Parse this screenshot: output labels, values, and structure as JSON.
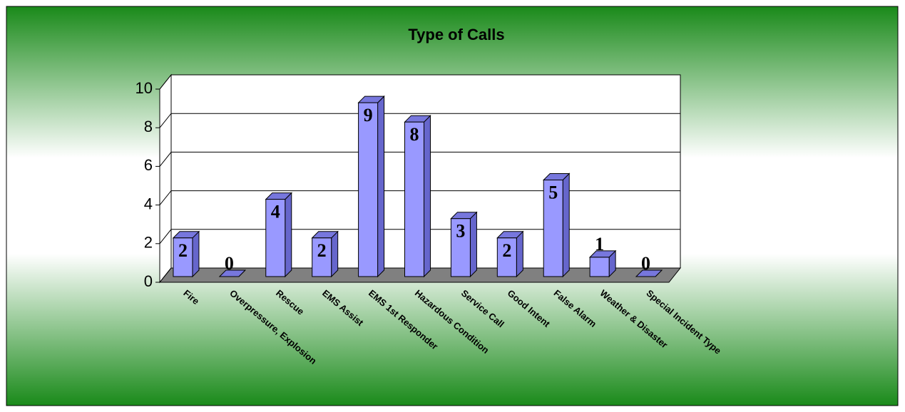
{
  "chart_data": {
    "type": "bar3d",
    "title": "Type of Calls",
    "categories": [
      "Fire",
      "Overpressure, Explosion",
      "Rescue",
      "EMS Assist",
      "EMS 1st Responder",
      "Hazardous Condition",
      "Service Call",
      "Good Intent",
      "False Alarm",
      "Weather & Disaster",
      "Special Incident Type"
    ],
    "values": [
      2,
      0,
      4,
      2,
      9,
      8,
      3,
      2,
      5,
      1,
      0
    ],
    "color": "#9999ff",
    "ylim": [
      0,
      10
    ],
    "yticks": [
      0,
      2,
      4,
      6,
      8,
      10
    ],
    "grid": true
  }
}
